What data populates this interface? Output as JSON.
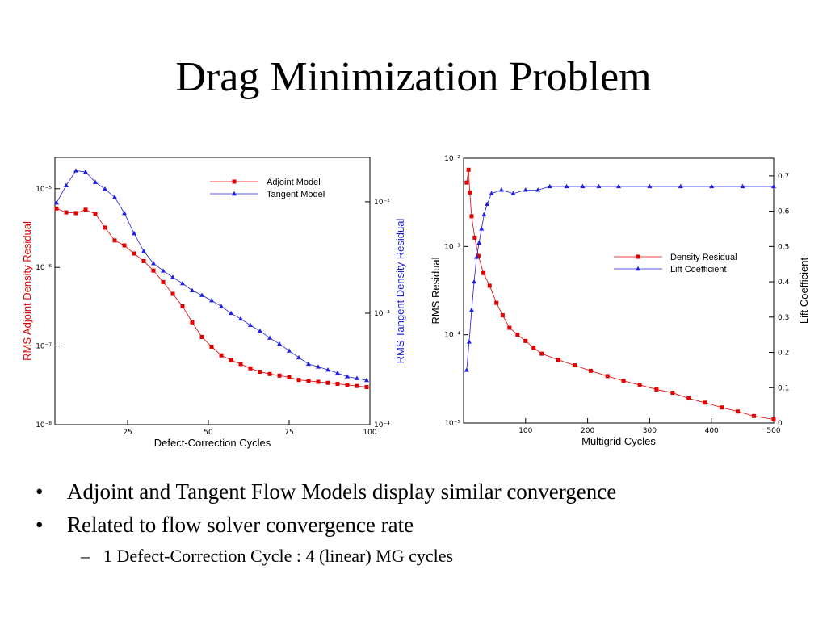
{
  "title": "Drag Minimization Problem",
  "bullets": [
    "Adjoint and Tangent Flow Models display similar convergence",
    "Related to flow solver convergence rate"
  ],
  "sub_bullets": [
    "1 Defect-Correction Cycle : 4 (linear) MG cycles"
  ],
  "chart_data": [
    {
      "type": "line",
      "xlabel": "Defect-Correction Cycles",
      "ylabel": "RMS Adjoint Density Residual",
      "y2label": "RMS Tangent Density Residual",
      "ylabel_color": "#e00000",
      "y2label_color": "#2020e0",
      "xlim": [
        2.5,
        100
      ],
      "xticks": [
        25,
        50,
        75,
        100
      ],
      "ylim": [
        1e-08,
        2.5e-05
      ],
      "ylog": true,
      "yticks": [
        {
          "value": 1e-08,
          "label": "10⁻⁸"
        },
        {
          "value": 1e-07,
          "label": "10⁻⁷"
        },
        {
          "value": 1e-06,
          "label": "10⁻⁶"
        },
        {
          "value": 1e-05,
          "label": "10⁻⁵"
        }
      ],
      "y2lim": [
        0.0001,
        0.025
      ],
      "y2log": true,
      "y2ticks": [
        {
          "value": 0.0001,
          "label": "10⁻⁴"
        },
        {
          "value": 0.001,
          "label": "10⁻³"
        },
        {
          "value": 0.01,
          "label": "10⁻²"
        }
      ],
      "legend": "upper right",
      "x": [
        3,
        6,
        9,
        12,
        15,
        18,
        21,
        24,
        27,
        30,
        33,
        36,
        39,
        42,
        45,
        48,
        51,
        54,
        57,
        60,
        63,
        66,
        69,
        72,
        75,
        78,
        81,
        84,
        87,
        90,
        93,
        96,
        99
      ],
      "series": [
        {
          "name": "Adjoint Model",
          "color": "#e00000",
          "marker": "square",
          "axis": "y",
          "values": [
            5.6e-06,
            5e-06,
            4.9e-06,
            5.4e-06,
            4.8e-06,
            3.2e-06,
            2.2e-06,
            1.9e-06,
            1.5e-06,
            1.2e-06,
            9.1e-07,
            6.5e-07,
            4.6e-07,
            3.2e-07,
            2e-07,
            1.3e-07,
            9.8e-08,
            7.6e-08,
            6.6e-08,
            5.9e-08,
            5.2e-08,
            4.7e-08,
            4.4e-08,
            4.2e-08,
            4e-08,
            3.7e-08,
            3.6e-08,
            3.5e-08,
            3.4e-08,
            3.3e-08,
            3.2e-08,
            3.1e-08,
            3e-08
          ]
        },
        {
          "name": "Tangent Model",
          "color": "#2020e0",
          "marker": "triangle",
          "axis": "y2",
          "values": [
            0.0098,
            0.014,
            0.019,
            0.0185,
            0.015,
            0.013,
            0.011,
            0.0079,
            0.0052,
            0.0036,
            0.0028,
            0.0024,
            0.0021,
            0.00185,
            0.0016,
            0.00145,
            0.0013,
            0.00115,
            0.001,
            0.00089,
            0.00078,
            0.00069,
            0.0006,
            0.00053,
            0.00046,
            0.0004,
            0.00035,
            0.00033,
            0.00031,
            0.00029,
            0.00027,
            0.00026,
            0.00025
          ]
        }
      ]
    },
    {
      "type": "line",
      "xlabel": "Multigrid Cycles",
      "ylabel": "RMS Residual",
      "y2label": "Lift Coefficient",
      "xlim": [
        0,
        500
      ],
      "xticks": [
        100,
        200,
        300,
        400,
        500
      ],
      "ylim": [
        1e-05,
        0.01
      ],
      "ylog": true,
      "yticks": [
        {
          "value": 1e-05,
          "label": "10⁻⁵"
        },
        {
          "value": 0.0001,
          "label": "10⁻⁴"
        },
        {
          "value": 0.001,
          "label": "10⁻³"
        },
        {
          "value": 0.01,
          "label": "10⁻²"
        }
      ],
      "y2lim": [
        0,
        0.75
      ],
      "y2ticks": [
        0,
        0.1,
        0.2,
        0.3,
        0.4,
        0.5,
        0.6,
        0.7
      ],
      "legend": "center right",
      "series": [
        {
          "name": "Density Residual",
          "color": "#e00000",
          "marker": "square",
          "axis": "y",
          "x": [
            5,
            8,
            10,
            13,
            18,
            24,
            32,
            42,
            53,
            63,
            74,
            87,
            100,
            113,
            126,
            153,
            179,
            205,
            232,
            258,
            284,
            311,
            337,
            363,
            389,
            416,
            442,
            468,
            500
          ],
          "values": [
            0.0053,
            0.0074,
            0.0041,
            0.0022,
            0.00126,
            0.00078,
            0.0005,
            0.00036,
            0.00023,
            0.000166,
            0.00012,
            0.0001,
            8.5e-05,
            7.1e-05,
            6.1e-05,
            5.2e-05,
            4.5e-05,
            3.9e-05,
            3.4e-05,
            3e-05,
            2.7e-05,
            2.4e-05,
            2.2e-05,
            1.9e-05,
            1.7e-05,
            1.5e-05,
            1.35e-05,
            1.2e-05,
            1.1e-05
          ]
        },
        {
          "name": "Lift Coefficient",
          "color": "#2020e0",
          "marker": "triangle",
          "axis": "y2",
          "x": [
            5,
            9,
            13,
            17,
            21,
            25,
            29,
            33,
            38,
            45,
            61,
            80,
            100,
            120,
            139,
            166,
            192,
            218,
            250,
            300,
            350,
            400,
            450,
            500
          ],
          "values": [
            0.15,
            0.23,
            0.32,
            0.4,
            0.47,
            0.51,
            0.55,
            0.59,
            0.62,
            0.65,
            0.66,
            0.65,
            0.66,
            0.66,
            0.67,
            0.67,
            0.67,
            0.67,
            0.67,
            0.67,
            0.67,
            0.67,
            0.67,
            0.67
          ]
        }
      ]
    }
  ]
}
